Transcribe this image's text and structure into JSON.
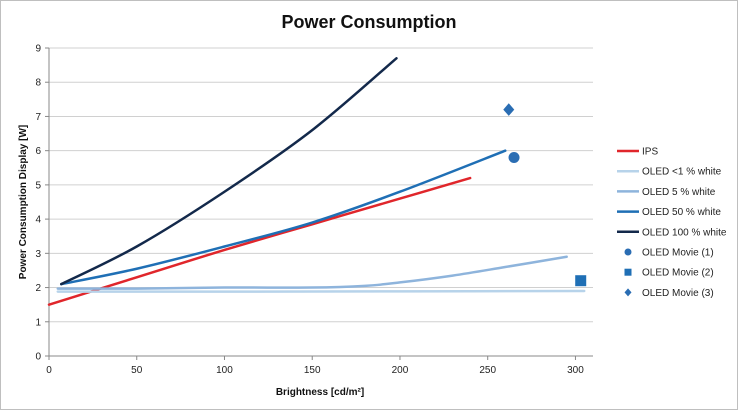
{
  "chart_data": {
    "type": "line",
    "title": "Power Consumption",
    "xlabel": "Brightness [cd/m²]",
    "ylabel": "Power Consumption Display [W]",
    "xlim": [
      0,
      310
    ],
    "ylim": [
      0,
      9
    ],
    "xticks": [
      0,
      50,
      100,
      150,
      200,
      250,
      300
    ],
    "yticks": [
      0,
      1,
      2,
      3,
      4,
      5,
      6,
      7,
      8,
      9
    ],
    "grid": "horizontal",
    "legend_position": "right",
    "series": [
      {
        "name": "IPS",
        "kind": "line",
        "color": "#e0262b",
        "x": [
          0,
          25,
          50,
          100,
          150,
          200,
          240
        ],
        "y": [
          1.5,
          1.9,
          2.3,
          3.1,
          3.85,
          4.6,
          5.2
        ]
      },
      {
        "name": "OLED <1 % white",
        "kind": "line",
        "color": "#b7d3ea",
        "x": [
          5,
          100,
          200,
          305
        ],
        "y": [
          1.88,
          1.88,
          1.89,
          1.9
        ]
      },
      {
        "name": "OLED 5 % white",
        "kind": "line",
        "color": "#8eb4dc",
        "x": [
          5,
          50,
          100,
          150,
          180,
          200,
          230,
          260,
          295
        ],
        "y": [
          1.97,
          1.97,
          2.0,
          2.0,
          2.05,
          2.15,
          2.35,
          2.6,
          2.9
        ]
      },
      {
        "name": "OLED 50 % white",
        "kind": "line",
        "color": "#1f6fb5",
        "x": [
          7,
          50,
          100,
          150,
          200,
          260
        ],
        "y": [
          2.1,
          2.55,
          3.2,
          3.9,
          4.8,
          6.0
        ]
      },
      {
        "name": "OLED 100 % white",
        "kind": "line",
        "color": "#13294b",
        "x": [
          7,
          50,
          100,
          150,
          198
        ],
        "y": [
          2.1,
          3.2,
          4.8,
          6.6,
          8.7
        ]
      },
      {
        "name": "OLED Movie (1)",
        "kind": "point",
        "marker": "circle",
        "color": "#2a6db3",
        "x": [
          265
        ],
        "y": [
          5.8
        ]
      },
      {
        "name": "OLED Movie (2)",
        "kind": "point",
        "marker": "square",
        "color": "#1f6fb5",
        "x": [
          303
        ],
        "y": [
          2.2
        ]
      },
      {
        "name": "OLED Movie (3)",
        "kind": "point",
        "marker": "diamond",
        "color": "#2a6db3",
        "x": [
          262
        ],
        "y": [
          7.2
        ]
      }
    ]
  }
}
